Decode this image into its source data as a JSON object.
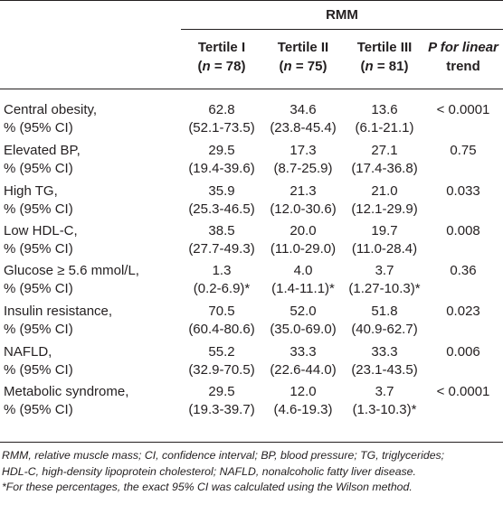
{
  "table": {
    "group_header": "RMM",
    "columns": [
      {
        "line1": "Tertile I",
        "n_label": "n",
        "n_value": " = 78)"
      },
      {
        "line1": "Tertile II",
        "n_label": "n",
        "n_value": " = 75)"
      },
      {
        "line1": "Tertile III",
        "n_label": "n",
        "n_value": " = 81)"
      }
    ],
    "p_header_line1": "P for linear",
    "p_header_line2": "trend",
    "rows": [
      {
        "label1": "Central obesity,",
        "label2": "% (95% CI)",
        "t1a": "62.8",
        "t1b": "(52.1-73.5)",
        "t2a": "34.6",
        "t2b": "(23.8-45.4)",
        "t3a": "13.6",
        "t3b": "(6.1-21.1)",
        "p": "< 0.0001"
      },
      {
        "label1": "Elevated BP,",
        "label2": "% (95% CI)",
        "t1a": "29.5",
        "t1b": "(19.4-39.6)",
        "t2a": "17.3",
        "t2b": "(8.7-25.9)",
        "t3a": "27.1",
        "t3b": "(17.4-36.8)",
        "p": "0.75"
      },
      {
        "label1": "High TG,",
        "label2": "% (95% CI)",
        "t1a": "35.9",
        "t1b": "(25.3-46.5)",
        "t2a": "21.3",
        "t2b": "(12.0-30.6)",
        "t3a": "21.0",
        "t3b": "(12.1-29.9)",
        "p": "0.033"
      },
      {
        "label1": "Low HDL-C,",
        "label2": "% (95% CI)",
        "t1a": "38.5",
        "t1b": "(27.7-49.3)",
        "t2a": "20.0",
        "t2b": "(11.0-29.0)",
        "t3a": "19.7",
        "t3b": "(11.0-28.4)",
        "p": "0.008"
      },
      {
        "label1": "Glucose ≥ 5.6 mmol/L,",
        "label2": "% (95% CI)",
        "t1a": "1.3",
        "t1b": "(0.2-6.9)*",
        "t2a": "4.0",
        "t2b": "(1.4-11.1)*",
        "t3a": "3.7",
        "t3b": "(1.27-10.3)*",
        "p": "0.36"
      },
      {
        "label1": "Insulin resistance,",
        "label2": "% (95% CI)",
        "t1a": "70.5",
        "t1b": "(60.4-80.6)",
        "t2a": "52.0",
        "t2b": "(35.0-69.0)",
        "t3a": "51.8",
        "t3b": "(40.9-62.7)",
        "p": "0.023"
      },
      {
        "label1": "NAFLD,",
        "label2": "% (95% CI)",
        "t1a": "55.2",
        "t1b": "(32.9-70.5)",
        "t2a": "33.3",
        "t2b": "(22.6-44.0)",
        "t3a": "33.3",
        "t3b": "(23.1-43.5)",
        "p": "0.006"
      },
      {
        "label1": "Metabolic syndrome,",
        "label2": "% (95% CI)",
        "t1a": "29.5",
        "t1b": "(19.3-39.7)",
        "t2a": "12.0",
        "t2b": "(4.6-19.3)",
        "t3a": "3.7",
        "t3b": "(1.3-10.3)*",
        "p": "< 0.0001"
      }
    ]
  },
  "footnotes": {
    "line1": "RMM, relative muscle mass; CI, confidence interval; BP, blood pressure; TG, triglycerides;",
    "line2": "HDL-C, high-density lipoprotein cholesterol; NAFLD, nonalcoholic fatty liver disease.",
    "line3": "*For these percentages, the exact 95% CI was calculated using the Wilson method."
  }
}
